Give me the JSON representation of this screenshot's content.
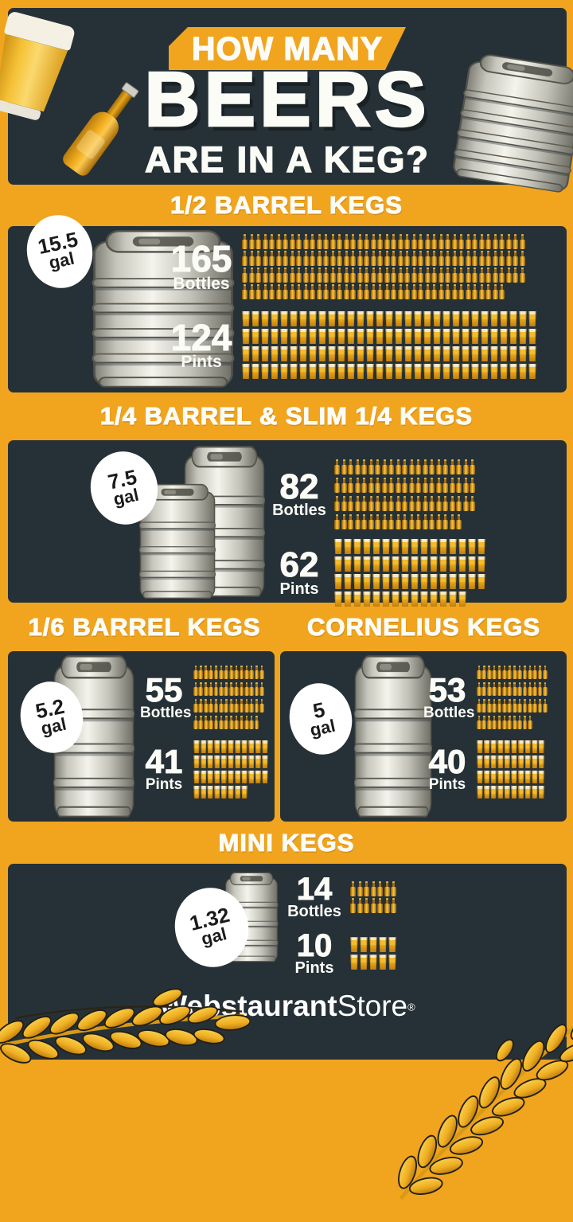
{
  "header": {
    "kicker": "HOW MANY",
    "title": "BEERS",
    "subtitle": "ARE IN A KEG?"
  },
  "sections": [
    {
      "title": "1/2 BARREL KEGS",
      "gallons": "15.5",
      "gal_unit": "gal",
      "bottles": 165,
      "bottles_label": "Bottles",
      "pints": 124,
      "pints_label": "Pints"
    },
    {
      "title": "1/4 BARREL & SLIM 1/4 KEGS",
      "gallons": "7.5",
      "gal_unit": "gal",
      "bottles": 82,
      "bottles_label": "Bottles",
      "pints": 62,
      "pints_label": "Pints"
    },
    {
      "title": "1/6 BARREL KEGS",
      "gallons": "5.2",
      "gal_unit": "gal",
      "bottles": 55,
      "bottles_label": "Bottles",
      "pints": 41,
      "pints_label": "Pints"
    },
    {
      "title": "CORNELIUS KEGS",
      "gallons": "5",
      "gal_unit": "gal",
      "bottles": 53,
      "bottles_label": "Bottles",
      "pints": 40,
      "pints_label": "Pints"
    },
    {
      "title": "MINI KEGS",
      "gallons": "1.32",
      "gal_unit": "gal",
      "bottles": 14,
      "bottles_label": "Bottles",
      "pints": 10,
      "pints_label": "Pints"
    }
  ],
  "footer": {
    "brand_bold": "Webstaurant",
    "brand_light": "Store",
    "trademark": "®"
  },
  "colors": {
    "orange": "#F1A41E",
    "panel_dark": "#263137",
    "text_cream": "#FCFCF7",
    "icon_amber": "#F2B32B",
    "keg_metal": "#E8E8E0",
    "badge_white": "#FFFFFF",
    "badge_text": "#1B1B1B"
  },
  "chart_data": {
    "type": "pictograph",
    "title": "How Many Beers Are in a Keg?",
    "categories": [
      "1/2 Barrel Keg",
      "1/4 Barrel & Slim 1/4 Keg",
      "1/6 Barrel Keg",
      "Cornelius Keg",
      "Mini Keg"
    ],
    "series": [
      {
        "name": "Gallons",
        "values": [
          15.5,
          7.5,
          5.2,
          5,
          1.32
        ]
      },
      {
        "name": "Bottles",
        "values": [
          165,
          82,
          55,
          53,
          14
        ]
      },
      {
        "name": "Pints",
        "values": [
          124,
          62,
          41,
          40,
          10
        ]
      }
    ],
    "legend_position": "none",
    "grid": false
  }
}
